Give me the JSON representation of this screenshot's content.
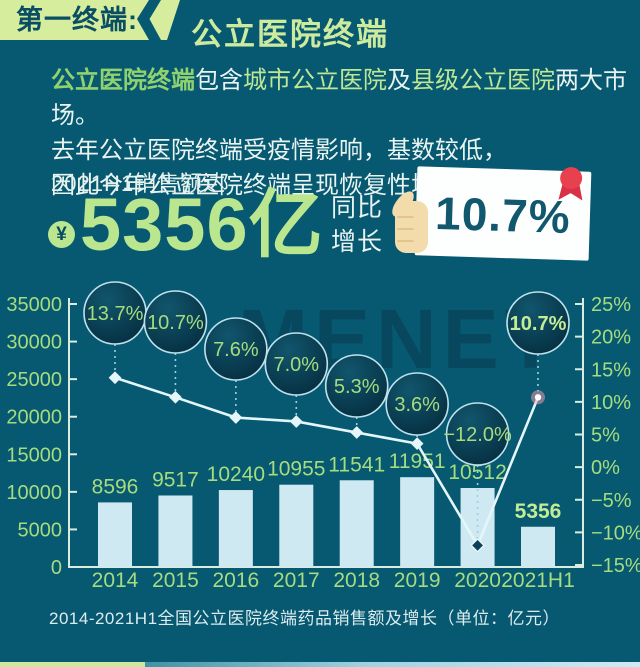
{
  "header": {
    "tag_label": "第一终端:",
    "title": "公立医院终端"
  },
  "intro": {
    "line1_parts": [
      "公立医院终端",
      "包含",
      "城市公立医院",
      "及",
      "县级公立医院",
      "两大市场。"
    ],
    "line2": "去年公立医院终端受疫情影响，基数较低，",
    "line3": "因此今年公立医院终端呈现恢复性增长。"
  },
  "highlight": {
    "period_label": "2021H1销售额达",
    "currency_symbol": "¥",
    "amount": "5356亿",
    "yoy_label_line1": "同比",
    "yoy_label_line2": "增长",
    "yoy_value": "10.7%"
  },
  "caption": "2014-2021H1全国公立医院终端药品销售额及增长（单位：亿元）",
  "chart_data": {
    "type": "bar+line combo",
    "title": "2014-2021H1全国公立医院终端药品销售额及增长（单位：亿元）",
    "categories": [
      "2014",
      "2015",
      "2016",
      "2017",
      "2018",
      "2019",
      "2020",
      "2021H1"
    ],
    "series": [
      {
        "name": "药品销售额(亿元)",
        "type": "bar",
        "values": [
          8596,
          9517,
          10240,
          10955,
          11541,
          11951,
          10512,
          5356
        ]
      },
      {
        "name": "同比增长率",
        "type": "line",
        "values": [
          13.7,
          10.7,
          7.6,
          7.0,
          5.3,
          3.6,
          -12.0,
          10.7
        ],
        "labels": [
          "13.7%",
          "10.7%",
          "7.6%",
          "7.0%",
          "5.3%",
          "3.6%",
          "−12.0%",
          "10.7%"
        ]
      }
    ],
    "left_axis": {
      "min": 0,
      "max": 35000,
      "step": 5000,
      "values": [
        35000,
        30000,
        25000,
        20000,
        15000,
        10000,
        5000,
        0
      ],
      "ticks": [
        "35000",
        "30000",
        "25000",
        "20000",
        "15000",
        "10000",
        "5000",
        "0"
      ]
    },
    "right_axis": {
      "min": -15,
      "max": 25,
      "step": 5,
      "values": [
        25,
        20,
        15,
        10,
        5,
        0,
        -5,
        -10,
        -15
      ],
      "ticks": [
        "25%",
        "20%",
        "15%",
        "10%",
        "5%",
        "0%",
        "−5%",
        "−10%",
        "−15%"
      ]
    },
    "grid": "off",
    "watermark": "MENET"
  },
  "colors": {
    "background": "#075871",
    "banner_green": "#d6ed9d",
    "banner_text": "#0a4e63",
    "title_green": "#cdeb9f",
    "green_strong": "#90d170",
    "green_light": "#bde795",
    "number_green": "#b9e68f",
    "chart_green": "#a5dc7f",
    "chart_green_bright": "#c3ec96",
    "bar_blue": "#cfe9f2",
    "line_white": "#e4f6fa",
    "marker_dark": "#0c4259",
    "marker_pink": "#ff9fb6",
    "axis": "#d9ecdd",
    "connector": "#9fd0de",
    "bubble_stroke": "#bee2ed",
    "bubble_fill_top": "#11566d",
    "bubble_fill_bottom": "#062e40",
    "card_white": "#fdfefe",
    "card_text": "#11586f",
    "ribbon_red": "#e8404f",
    "ribbon_red_dark": "#d93246",
    "hand_cream": "#f3dcab",
    "watermark": "#093c51"
  }
}
